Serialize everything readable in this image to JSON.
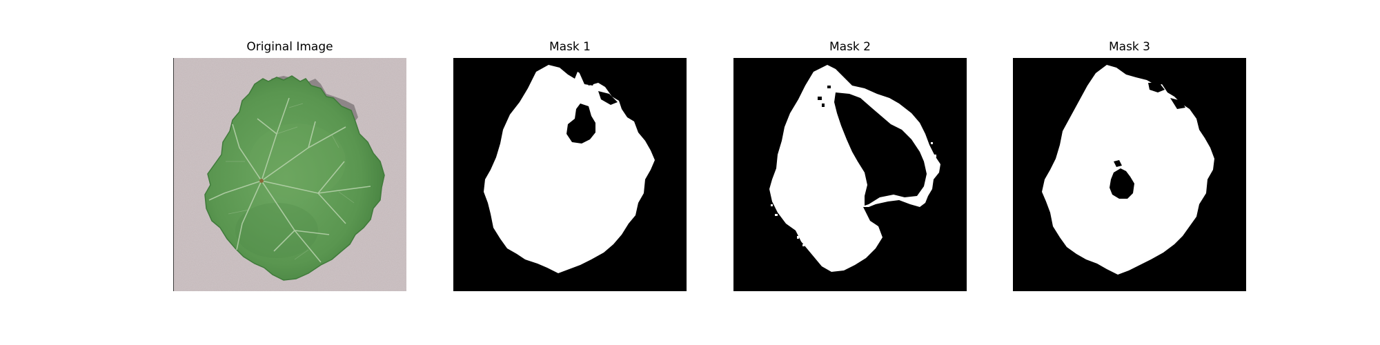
{
  "figure": {
    "panels": [
      {
        "title": "Original Image",
        "content": "leaf-photo"
      },
      {
        "title": "Mask 1",
        "content": "mask"
      },
      {
        "title": "Mask 2",
        "content": "mask"
      },
      {
        "title": "Mask 3",
        "content": "mask"
      }
    ]
  },
  "colors": {
    "background": "#ffffff",
    "mask_background": "#000000",
    "mask_foreground": "#ffffff",
    "photo_backdrop": "#c4b8ba",
    "leaf_green": "#5a9650",
    "leaf_dark": "#3f7a3a",
    "leaf_vein": "#b9d3ae"
  }
}
